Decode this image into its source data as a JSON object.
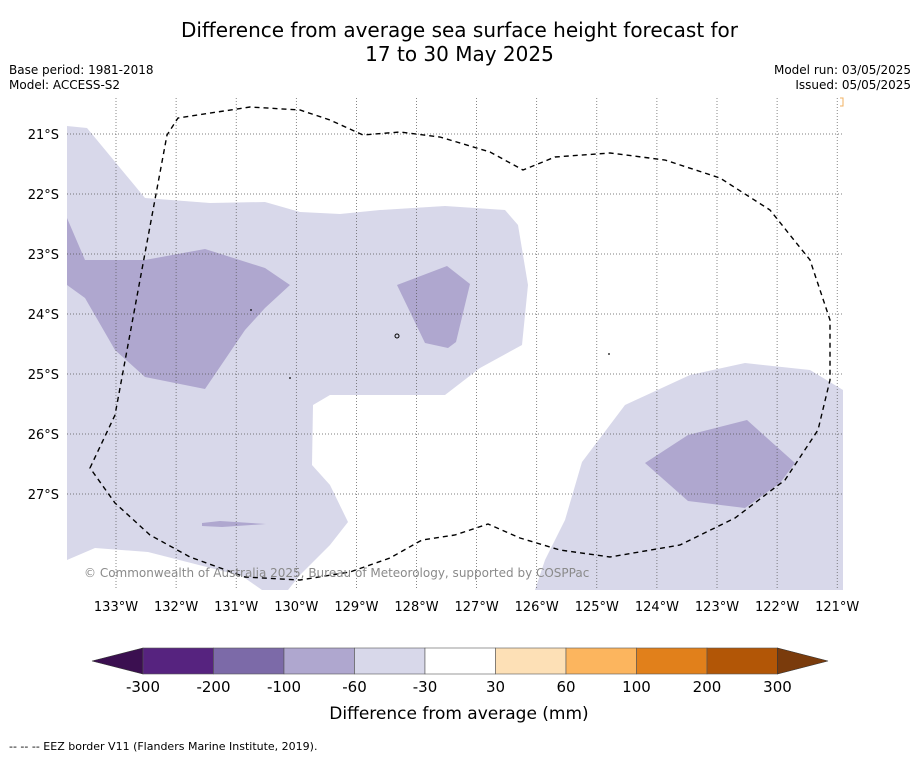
{
  "title_line1": "Difference from average sea surface height forecast for",
  "title_line2": "17 to 30 May 2025",
  "base_period": "Base period: 1981-2018",
  "model": "Model: ACCESS-S2",
  "model_run": "Model run: 03/05/2025",
  "issued": "Issued: 05/05/2025",
  "copyright": "© Commonwealth of Australia 2025, Bureau of Meteorology, supported by COSPPac",
  "lat_labels": [
    "21°S",
    "22°S",
    "23°S",
    "24°S",
    "25°S",
    "26°S",
    "27°S"
  ],
  "lon_labels": [
    "133°W",
    "132°W",
    "131°W",
    "130°W",
    "129°W",
    "128°W",
    "127°W",
    "126°W",
    "125°W",
    "124°W",
    "123°W",
    "122°W",
    "121°W"
  ],
  "colorbar": {
    "title": "Difference from average (mm)",
    "tick_labels": [
      "-300",
      "-200",
      "-100",
      "-60",
      "-30",
      "30",
      "60",
      "100",
      "200",
      "300"
    ],
    "colors": [
      "#3b0f50",
      "#56237f",
      "#7c6aa8",
      "#afa7cf",
      "#d8d8ea",
      "#ffffff",
      "#fde0b6",
      "#fcb55e",
      "#e1801b",
      "#b25606",
      "#7a3b0c"
    ]
  },
  "footnote": "-- -- -- EEZ border V11 (Flanders Marine Institute, 2019)."
}
